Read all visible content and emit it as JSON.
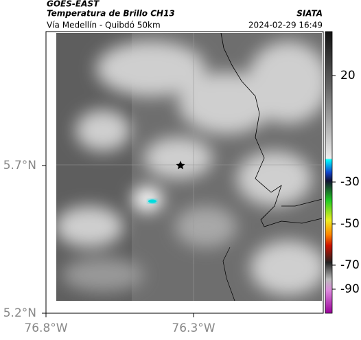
{
  "header": {
    "source": "GOES-EAST",
    "title": "Temperatura de Brillo CH13",
    "organization": "SIATA",
    "subtitle": "Vía Medellín - Quibdó 50km",
    "timestamp": "2024-02-29 16:49"
  },
  "map": {
    "lat_labels": [
      "5.7°N",
      "5.2°N"
    ],
    "lon_labels": [
      "76.8°W",
      "76.3°W"
    ]
  },
  "colorbar": {
    "ticks": [
      20,
      -30,
      -50,
      -70,
      -90
    ]
  }
}
